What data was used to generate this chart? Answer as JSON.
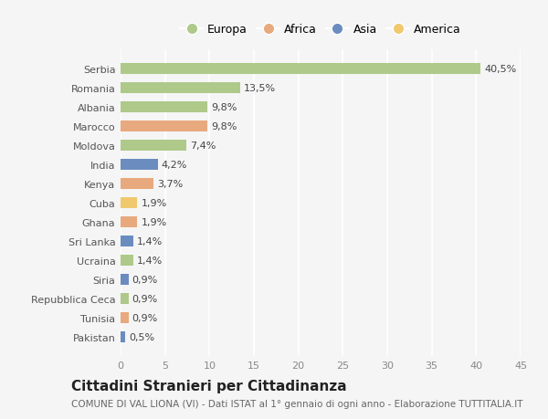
{
  "countries": [
    "Serbia",
    "Romania",
    "Albania",
    "Marocco",
    "Moldova",
    "India",
    "Kenya",
    "Cuba",
    "Ghana",
    "Sri Lanka",
    "Ucraina",
    "Siria",
    "Repubblica Ceca",
    "Tunisia",
    "Pakistan"
  ],
  "values": [
    40.5,
    13.5,
    9.8,
    9.8,
    7.4,
    4.2,
    3.7,
    1.9,
    1.9,
    1.4,
    1.4,
    0.9,
    0.9,
    0.9,
    0.5
  ],
  "labels": [
    "40,5%",
    "13,5%",
    "9,8%",
    "9,8%",
    "7,4%",
    "4,2%",
    "3,7%",
    "1,9%",
    "1,9%",
    "1,4%",
    "1,4%",
    "0,9%",
    "0,9%",
    "0,9%",
    "0,5%"
  ],
  "continents": [
    "Europa",
    "Europa",
    "Europa",
    "Africa",
    "Europa",
    "Asia",
    "Africa",
    "America",
    "Africa",
    "Asia",
    "Europa",
    "Asia",
    "Europa",
    "Africa",
    "Asia"
  ],
  "continent_colors": {
    "Europa": "#aec98a",
    "Africa": "#e8a97e",
    "Asia": "#6b8cbf",
    "America": "#f0c96e"
  },
  "legend_order": [
    "Europa",
    "Africa",
    "Asia",
    "America"
  ],
  "xlim": [
    0,
    45
  ],
  "xticks": [
    0,
    5,
    10,
    15,
    20,
    25,
    30,
    35,
    40,
    45
  ],
  "title": "Cittadini Stranieri per Cittadinanza",
  "subtitle": "COMUNE DI VAL LIONA (VI) - Dati ISTAT al 1° gennaio di ogni anno - Elaborazione TUTTITALIA.IT",
  "background_color": "#f5f5f5",
  "bar_height": 0.55,
  "grid_color": "#ffffff",
  "title_fontsize": 11,
  "subtitle_fontsize": 7.5,
  "tick_fontsize": 8,
  "label_fontsize": 8
}
